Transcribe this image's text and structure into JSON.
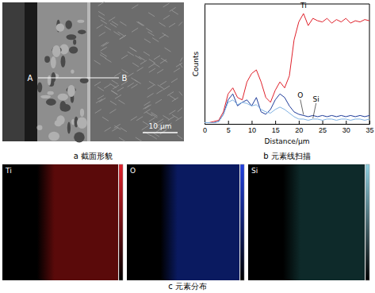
{
  "chart_data": {
    "type": "line",
    "x_label": "Distance/μm",
    "y_label": "Counts",
    "x": [
      0,
      1,
      2,
      3,
      4,
      5,
      6,
      7,
      8,
      9,
      10,
      11,
      12,
      13,
      14,
      15,
      16,
      17,
      18,
      19,
      20,
      21,
      22,
      23,
      24,
      25,
      26,
      27,
      28,
      29,
      30,
      31,
      32,
      33,
      34,
      35
    ],
    "series": [
      {
        "name": "Ti",
        "color": "#e0202a",
        "values": [
          1,
          1,
          2,
          3,
          10,
          25,
          30,
          22,
          20,
          35,
          42,
          45,
          35,
          22,
          18,
          28,
          35,
          30,
          40,
          70,
          85,
          92,
          82,
          88,
          86,
          85,
          88,
          84,
          87,
          85,
          88,
          84,
          86,
          85,
          87,
          86
        ]
      },
      {
        "name": "O",
        "color": "#1f3c9a",
        "values": [
          1,
          1,
          1,
          2,
          8,
          20,
          25,
          15,
          18,
          20,
          15,
          22,
          10,
          8,
          12,
          20,
          25,
          22,
          15,
          10,
          8,
          7,
          6,
          7,
          6,
          7,
          6,
          7,
          6,
          7,
          6,
          7,
          6,
          7,
          6,
          7
        ]
      },
      {
        "name": "Si",
        "color": "#7fb2e3",
        "values": [
          1,
          1,
          1,
          2,
          8,
          18,
          20,
          16,
          18,
          17,
          15,
          16,
          12,
          10,
          9,
          12,
          14,
          12,
          9,
          6,
          4,
          4,
          3,
          4,
          4,
          3,
          4,
          4,
          3,
          4,
          4,
          3,
          4,
          4,
          3,
          4
        ]
      }
    ],
    "xlim": [
      0,
      35
    ],
    "xticks": [
      0,
      5,
      10,
      15,
      20,
      25,
      30,
      35
    ],
    "ylim": [
      0,
      100
    ],
    "tick_labels": "x"
  },
  "figure": {
    "panels": [
      {
        "caption": "a 截面形貌",
        "points": [
          "A",
          "B"
        ],
        "scale_bar": "10 μm"
      },
      {
        "caption": "b 元素线扫描"
      },
      {
        "caption": "c 元素分布",
        "maps": [
          "Ti",
          "O",
          "Si"
        ]
      }
    ]
  }
}
